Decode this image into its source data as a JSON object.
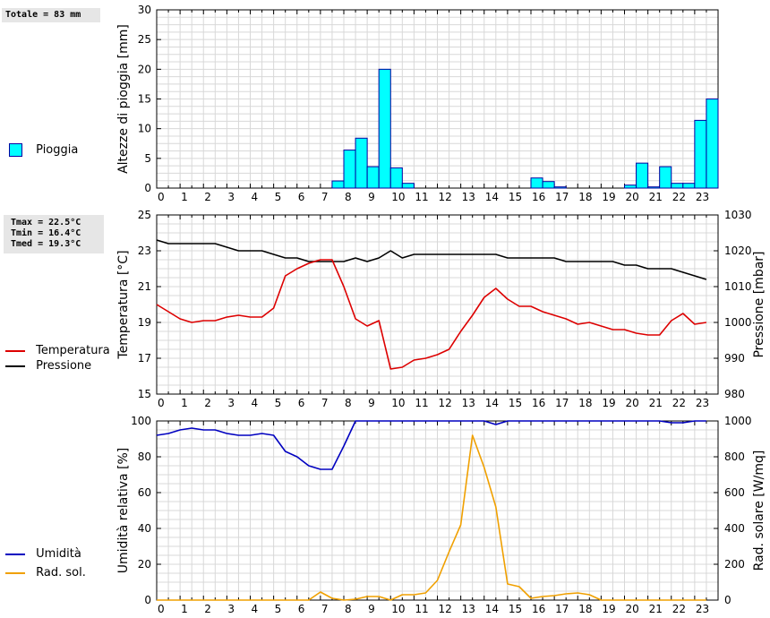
{
  "stats": {
    "totale": "Totale = 83 mm",
    "tmax": "Tmax = 22.5°C",
    "tmin": "Tmin = 16.4°C",
    "tmed": "Tmed = 19.3°C"
  },
  "legends": {
    "pioggia": "Pioggia",
    "temperatura": "Temperatura",
    "pressione": "Pressione",
    "umidita": "Umidità",
    "radsol": "Rad. sol."
  },
  "colors": {
    "rain_fill": "#00ffff",
    "rain_edge": "#0000a0",
    "temperature": "#dd0000",
    "pressure": "#000000",
    "humidity": "#0000c0",
    "radiation": "#f0a000",
    "grid": "#d8d8d8"
  },
  "chart_data": [
    {
      "type": "bar",
      "title": "",
      "xlabel": "",
      "ylabel": "Altezze di pioggia [mm]",
      "xlim": [
        0,
        24
      ],
      "ylim": [
        0,
        30
      ],
      "yticks": [
        0,
        5,
        10,
        15,
        20,
        25,
        30
      ],
      "xticks": [
        "0",
        "1",
        "2",
        "3",
        "4",
        "5",
        "6",
        "7",
        "8",
        "9",
        "10",
        "11",
        "12",
        "13",
        "14",
        "15",
        "16",
        "17",
        "18",
        "19",
        "20",
        "21",
        "22",
        "23"
      ],
      "bar_width": 0.5,
      "series": [
        {
          "name": "Pioggia",
          "x": [
            7.5,
            8,
            8.5,
            9,
            9.5,
            10,
            10.5,
            16,
            16.5,
            17,
            20,
            20.5,
            21,
            21.5,
            22,
            22.5,
            23,
            23.5
          ],
          "values": [
            1.2,
            6.4,
            8.4,
            3.6,
            20,
            3.4,
            0.8,
            1.7,
            1.1,
            0.2,
            0.5,
            4.2,
            0.2,
            3.6,
            0.8,
            0.8,
            11.4,
            15
          ]
        }
      ]
    },
    {
      "type": "line",
      "xlabel": "",
      "ylabel": "Temperatura [°C]",
      "y2label": "Pressione [mbar]",
      "xlim": [
        0,
        24
      ],
      "ylim": [
        15,
        25
      ],
      "yticks": [
        15,
        17,
        19,
        21,
        23,
        25
      ],
      "y2lim": [
        980,
        1030
      ],
      "y2ticks": [
        980,
        990,
        1000,
        1010,
        1020,
        1030
      ],
      "xticks": [
        "0",
        "1",
        "2",
        "3",
        "4",
        "5",
        "6",
        "7",
        "8",
        "9",
        "10",
        "11",
        "12",
        "13",
        "14",
        "15",
        "16",
        "17",
        "18",
        "19",
        "20",
        "21",
        "22",
        "23"
      ],
      "series": [
        {
          "name": "Temperatura",
          "axis": "left",
          "x": [
            0,
            0.5,
            1,
            1.5,
            2,
            2.5,
            3,
            3.5,
            4,
            4.5,
            5,
            5.5,
            6,
            6.5,
            7,
            7.5,
            8,
            8.5,
            9,
            9.5,
            10,
            10.5,
            11,
            11.5,
            12,
            12.5,
            13,
            13.5,
            14,
            14.5,
            15,
            15.5,
            16,
            16.5,
            17,
            17.5,
            18,
            18.5,
            19,
            19.5,
            20,
            20.5,
            21,
            21.5,
            22,
            22.5,
            23,
            23.5
          ],
          "values": [
            20.0,
            19.6,
            19.2,
            19.0,
            19.1,
            19.1,
            19.3,
            19.4,
            19.3,
            19.3,
            19.8,
            21.6,
            22.0,
            22.3,
            22.5,
            22.5,
            21.0,
            19.2,
            18.8,
            19.1,
            16.4,
            16.5,
            16.9,
            17.0,
            17.2,
            17.5,
            18.5,
            19.4,
            20.4,
            20.9,
            20.3,
            19.9,
            19.9,
            19.6,
            19.4,
            19.2,
            18.9,
            19.0,
            18.8,
            18.6,
            18.6,
            18.4,
            18.3,
            18.3,
            19.1,
            19.5,
            18.9,
            19.0
          ]
        },
        {
          "name": "Pressione",
          "axis": "right",
          "x": [
            0,
            0.5,
            1,
            1.5,
            2,
            2.5,
            3,
            3.5,
            4,
            4.5,
            5,
            5.5,
            6,
            6.5,
            7,
            7.5,
            8,
            8.5,
            9,
            9.5,
            10,
            10.5,
            11,
            11.5,
            12,
            12.5,
            13,
            13.5,
            14,
            14.5,
            15,
            15.5,
            16,
            16.5,
            17,
            17.5,
            18,
            18.5,
            19,
            19.5,
            20,
            20.5,
            21,
            21.5,
            22,
            22.5,
            23,
            23.5
          ],
          "values": [
            1023,
            1022,
            1022,
            1022,
            1022,
            1022,
            1021,
            1020,
            1020,
            1020,
            1019,
            1018,
            1018,
            1017,
            1017,
            1017,
            1017,
            1018,
            1017,
            1018,
            1020,
            1018,
            1019,
            1019,
            1019,
            1019,
            1019,
            1019,
            1019,
            1019,
            1018,
            1018,
            1018,
            1018,
            1018,
            1017,
            1017,
            1017,
            1017,
            1017,
            1016,
            1016,
            1015,
            1015,
            1015,
            1014,
            1013,
            1012
          ]
        }
      ]
    },
    {
      "type": "line",
      "xlabel": "",
      "ylabel": "Umidità relativa [%]",
      "y2label": "Rad. solare [W/mq]",
      "xlim": [
        0,
        24
      ],
      "ylim": [
        0,
        100
      ],
      "yticks": [
        0,
        20,
        40,
        60,
        80,
        100
      ],
      "y2lim": [
        0,
        1000
      ],
      "y2ticks": [
        0,
        200,
        400,
        600,
        800,
        1000
      ],
      "xticks": [
        "0",
        "1",
        "2",
        "3",
        "4",
        "5",
        "6",
        "7",
        "8",
        "9",
        "10",
        "11",
        "12",
        "13",
        "14",
        "15",
        "16",
        "17",
        "18",
        "19",
        "20",
        "21",
        "22",
        "23"
      ],
      "series": [
        {
          "name": "Umidità",
          "axis": "left",
          "x": [
            0,
            0.5,
            1,
            1.5,
            2,
            2.5,
            3,
            3.5,
            4,
            4.5,
            5,
            5.5,
            6,
            6.5,
            7,
            7.5,
            8,
            8.5,
            9,
            9.5,
            10,
            10.5,
            11,
            11.5,
            12,
            12.5,
            13,
            13.5,
            14,
            14.5,
            15,
            15.5,
            16,
            16.5,
            17,
            17.5,
            18,
            18.5,
            19,
            19.5,
            20,
            20.5,
            21,
            21.5,
            22,
            22.5,
            23,
            23.5
          ],
          "values": [
            92,
            93,
            95,
            96,
            95,
            95,
            93,
            92,
            92,
            93,
            92,
            83,
            80,
            75,
            73,
            73,
            86,
            100,
            100,
            100,
            100,
            100,
            100,
            100,
            100,
            100,
            100,
            100,
            100,
            98,
            100,
            100,
            100,
            100,
            100,
            100,
            100,
            100,
            100,
            100,
            100,
            100,
            100,
            100,
            99,
            99,
            100,
            100
          ]
        },
        {
          "name": "Rad. sol.",
          "axis": "right",
          "x": [
            0,
            0.5,
            1,
            1.5,
            2,
            2.5,
            3,
            3.5,
            4,
            4.5,
            5,
            5.5,
            6,
            6.5,
            7,
            7.5,
            8,
            8.5,
            9,
            9.5,
            10,
            10.5,
            11,
            11.5,
            12,
            12.5,
            13,
            13.5,
            14,
            14.5,
            15,
            15.5,
            16,
            16.5,
            17,
            17.5,
            18,
            18.5,
            19,
            19.5,
            20,
            20.5,
            21,
            21.5,
            22,
            22.5,
            23,
            23.5
          ],
          "values": [
            0,
            0,
            0,
            0,
            0,
            0,
            0,
            0,
            0,
            0,
            0,
            0,
            0,
            0,
            45,
            10,
            0,
            5,
            20,
            20,
            0,
            30,
            30,
            40,
            110,
            270,
            420,
            920,
            740,
            520,
            90,
            75,
            10,
            20,
            25,
            35,
            40,
            30,
            0,
            0,
            0,
            0,
            0,
            0,
            0,
            0,
            0,
            0
          ]
        }
      ]
    }
  ]
}
